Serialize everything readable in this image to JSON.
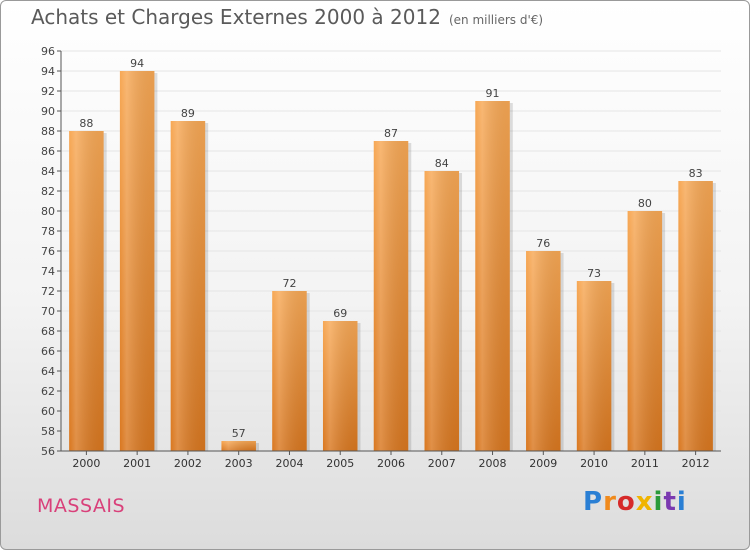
{
  "title": "Achats et Charges Externes 2000 à 2012",
  "unit_label": "(en milliers d'€)",
  "place_name": "MASSAIS",
  "logo_text": "Proxiti",
  "logo_colors": [
    "#2a7fd4",
    "#f08a1c",
    "#d62a2a",
    "#f0b400",
    "#2a9a3a",
    "#7a3ab0",
    "#2a7fd4"
  ],
  "colors": {
    "bar_light": "#f7a855",
    "bar_dark": "#d9771f",
    "title": "#5a5a5a",
    "place": "#d9407a",
    "grid": "#e5e5e5",
    "axis": "#555555"
  },
  "chart_data": {
    "type": "bar",
    "title": "Achats et Charges Externes 2000 à 2012",
    "subtitle": "(en milliers d'€)",
    "categories": [
      "2000",
      "2001",
      "2002",
      "2003",
      "2004",
      "2005",
      "2006",
      "2007",
      "2008",
      "2009",
      "2010",
      "2011",
      "2012"
    ],
    "values": [
      88,
      94,
      89,
      57,
      72,
      69,
      87,
      84,
      91,
      76,
      73,
      80,
      83
    ],
    "ylim": [
      56,
      96
    ],
    "yticks": [
      56,
      58,
      60,
      62,
      64,
      66,
      68,
      70,
      72,
      74,
      76,
      78,
      80,
      82,
      84,
      86,
      88,
      90,
      92,
      94,
      96
    ],
    "grid": true,
    "data_labels": true,
    "legend": "none",
    "xlabel": "",
    "ylabel": ""
  }
}
